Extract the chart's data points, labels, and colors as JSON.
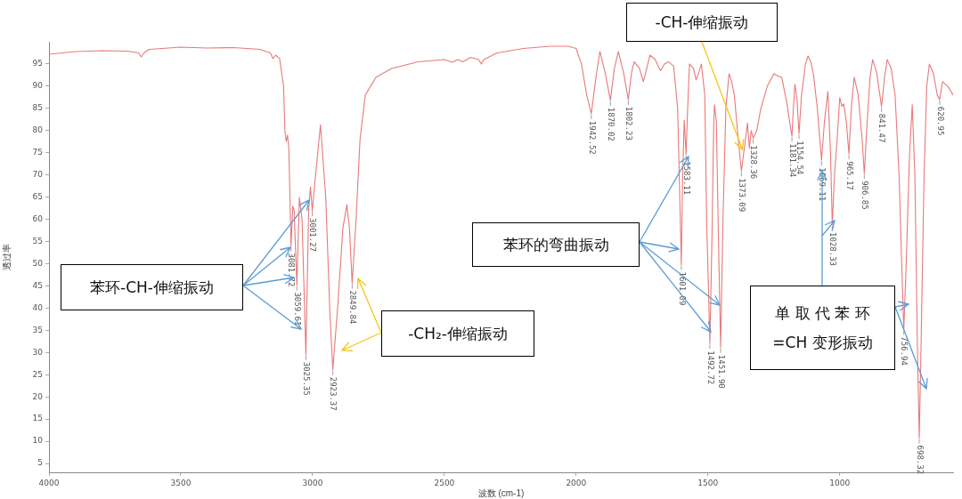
{
  "chart_data": {
    "type": "line",
    "xlabel": "波数 (cm-1)",
    "ylabel": "透过率",
    "color": "#e8797a",
    "x": [
      4000,
      3900,
      3800,
      3700,
      3660,
      3650,
      3640,
      3620,
      3500,
      3400,
      3300,
      3200,
      3160,
      3150,
      3140,
      3125,
      3110,
      3105,
      3100,
      3095,
      3090,
      3081.72,
      3075,
      3070,
      3059.61,
      3050,
      3040,
      3025.35,
      3015,
      3008,
      3001.27,
      2995,
      2970,
      2950,
      2935,
      2923.37,
      2905,
      2885,
      2870,
      2860,
      2849.84,
      2835,
      2820,
      2800,
      2760,
      2700,
      2600,
      2500,
      2470,
      2450,
      2430,
      2400,
      2370,
      2360,
      2350,
      2300,
      2200,
      2100,
      2030,
      2000,
      1980,
      1960,
      1942.52,
      1925,
      1910,
      1890,
      1870.02,
      1855,
      1840,
      1820,
      1802.23,
      1790,
      1780,
      1760,
      1745,
      1730,
      1720,
      1700,
      1680,
      1665,
      1650,
      1630,
      1615,
      1605,
      1601.09,
      1596,
      1590,
      1583.11,
      1577,
      1570,
      1555,
      1545,
      1535,
      1525,
      1512,
      1505,
      1492.72,
      1485,
      1478,
      1475,
      1468,
      1460,
      1451.9,
      1443,
      1432,
      1420,
      1410,
      1400,
      1385,
      1373.09,
      1362,
      1350,
      1343,
      1336,
      1328.36,
      1315,
      1300,
      1275,
      1250,
      1235,
      1220,
      1200,
      1185,
      1181.34,
      1176,
      1170,
      1162,
      1154.54,
      1145,
      1130,
      1120,
      1110,
      1100,
      1085,
      1069.11,
      1058,
      1045,
      1035,
      1028.33,
      1020,
      1010,
      1000,
      992,
      985,
      975,
      965.17,
      955,
      945,
      930,
      915,
      906.85,
      898,
      885,
      875,
      860,
      841.47,
      830,
      820,
      805,
      790,
      775,
      765,
      756.94,
      748,
      735,
      725,
      715,
      705,
      698.32,
      692,
      680,
      670,
      660,
      645,
      630,
      620.95,
      610,
      590,
      570
    ],
    "values": [
      97.2,
      97.8,
      98,
      97.9,
      97.5,
      96.6,
      97.5,
      98.3,
      98.8,
      98.6,
      98.7,
      98.3,
      97.5,
      96.2,
      97,
      96.2,
      90,
      80,
      77.5,
      79,
      76,
      54,
      63,
      62,
      45.2,
      64.9,
      60,
      29.5,
      62,
      67.3,
      61.9,
      66,
      81.3,
      65,
      40,
      26.1,
      40,
      58,
      63.3,
      58,
      45.6,
      60,
      78,
      88,
      92,
      94,
      95.5,
      96,
      95.4,
      96,
      95.5,
      96.5,
      96,
      95,
      96,
      97.5,
      98.5,
      99,
      99,
      98.5,
      95,
      88,
      83.8,
      92,
      97.8,
      93,
      86.8,
      94,
      97.8,
      93,
      87,
      93,
      95.5,
      94,
      91,
      94.5,
      97,
      96,
      93.5,
      95,
      95.5,
      94.5,
      85,
      60,
      49.8,
      70,
      82.3,
      74.7,
      85,
      95,
      94,
      91.4,
      93,
      95,
      88,
      60,
      32,
      55,
      82,
      85.8,
      82,
      55,
      31.1,
      60,
      85,
      92.8,
      91,
      88,
      78,
      70.9,
      76,
      81.7,
      76,
      80,
      78.3,
      80,
      84.8,
      90,
      92.8,
      92.3,
      92,
      86,
      80,
      78.7,
      85,
      90.4,
      87,
      79.3,
      88,
      95,
      96.8,
      95.5,
      92.8,
      85,
      73.3,
      82,
      88.8,
      75,
      58.7,
      70,
      78,
      87.4,
      85.5,
      86,
      82,
      74.7,
      86,
      92,
      88,
      78,
      70.3,
      80,
      92,
      96,
      93,
      85.4,
      92,
      96,
      94,
      88,
      70,
      50,
      35.2,
      50,
      75,
      85.8,
      70,
      30,
      10.7,
      30,
      70,
      90,
      95,
      93,
      88,
      87,
      91,
      90,
      88
    ],
    "xlim": [
      4000,
      570
    ],
    "ylim": [
      3,
      100
    ],
    "xticks": [
      4000,
      3500,
      3000,
      2500,
      2000,
      1500,
      1000
    ],
    "yticks": [
      5,
      10,
      15,
      20,
      25,
      30,
      35,
      40,
      45,
      50,
      55,
      60,
      65,
      70,
      75,
      80,
      85,
      90,
      95
    ],
    "annotations": [
      "苯环-CH-伸缩振动",
      "-CH₂-伸缩振动",
      "苯环的弯曲振动",
      {
        "text": "-CH-伸缩振动",
        "x": 1369,
        "y": 75.7
      },
      "单 取 代 苯 环\n=CH 变形振动",
      {
        "text": "3081.72",
        "x": 3081.72,
        "y": 54
      },
      {
        "text": "3059.61",
        "x": 3059.61,
        "y": 45.2
      },
      {
        "text": "3025.35",
        "x": 3025.35,
        "y": 29.5
      },
      {
        "text": "3001.27",
        "x": 3001.27,
        "y": 61.9
      },
      {
        "text": "2923.37",
        "x": 2923.37,
        "y": 26.1
      },
      {
        "text": "2849.84",
        "x": 2849.84,
        "y": 45.6
      },
      {
        "text": "1942.52",
        "x": 1942.52,
        "y": 83.8
      },
      {
        "text": "1870.02",
        "x": 1870.02,
        "y": 86.8
      },
      {
        "text": "1802.23",
        "x": 1802.23,
        "y": 87
      },
      {
        "text": "1601.09",
        "x": 1601.09,
        "y": 49.8
      },
      {
        "text": "1583.11",
        "x": 1583.11,
        "y": 74.7
      },
      {
        "text": "1492.72",
        "x": 1492.72,
        "y": 32
      },
      {
        "text": "1451.90",
        "x": 1451.9,
        "y": 31.1
      },
      {
        "text": "1373.09",
        "x": 1373.09,
        "y": 70.9
      },
      {
        "text": "1328.36",
        "x": 1328.36,
        "y": 78.3
      },
      {
        "text": "1181.34",
        "x": 1181.34,
        "y": 78.7
      },
      {
        "text": "1154.54",
        "x": 1154.54,
        "y": 79.3
      },
      {
        "text": "1069.11",
        "x": 1069.11,
        "y": 73.3
      },
      {
        "text": "1028.33",
        "x": 1028.33,
        "y": 58.7
      },
      {
        "text": "965.17",
        "x": 965.17,
        "y": 74.7
      },
      {
        "text": "906.85",
        "x": 906.85,
        "y": 70.3
      },
      {
        "text": "841.47",
        "x": 841.47,
        "y": 85.4
      },
      {
        "text": "756.94",
        "x": 756.94,
        "y": 35.2
      },
      {
        "text": "698.32",
        "x": 698.32,
        "y": 10.7
      },
      {
        "text": "620.95",
        "x": 620.95,
        "y": 87
      }
    ]
  }
}
